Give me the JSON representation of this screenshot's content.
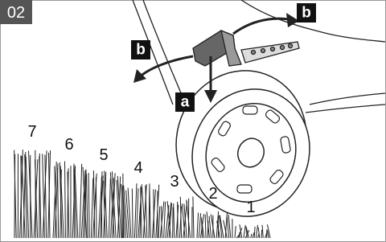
{
  "badge": "02",
  "callouts": [
    {
      "label": "b"
    },
    {
      "label": "b"
    },
    {
      "label": "a"
    }
  ],
  "height_levels": [
    "7",
    "6",
    "5",
    "4",
    "3",
    "2",
    "1"
  ]
}
